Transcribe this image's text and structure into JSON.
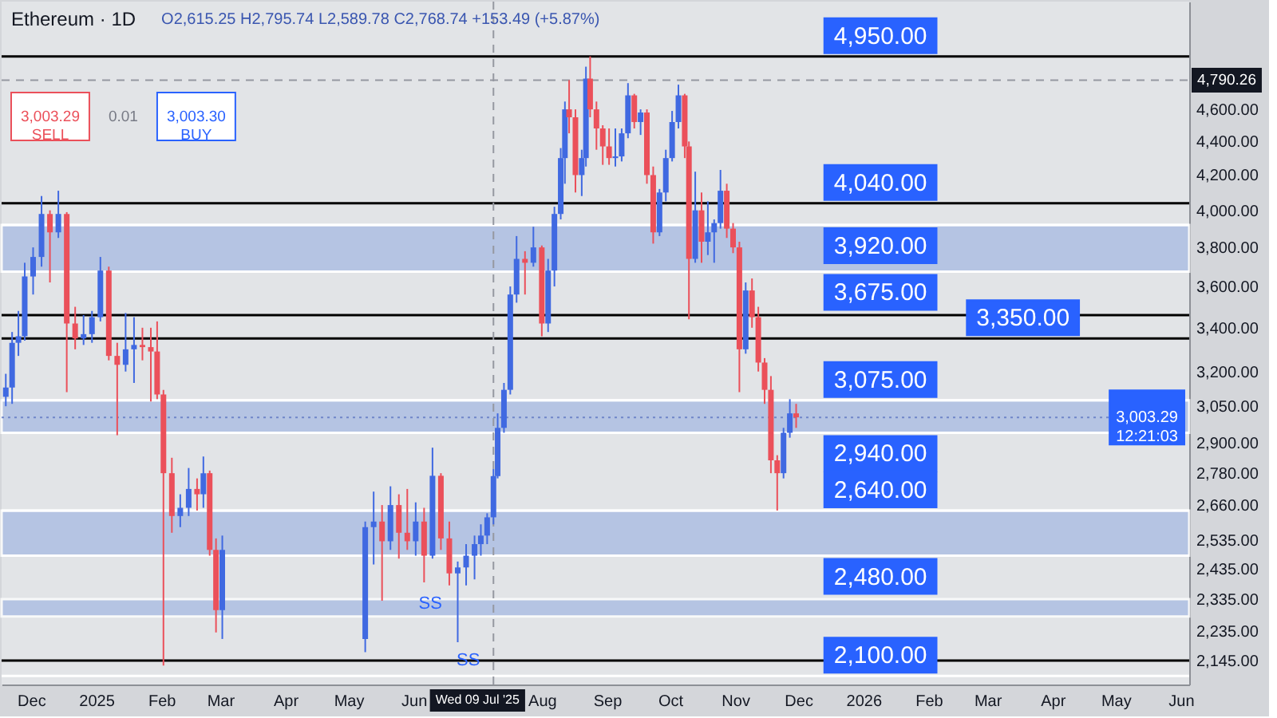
{
  "chart_data": {
    "type": "candlestick",
    "title": "Ethereum · 1D",
    "subtitle": "O2,615.25 H2,795.74 L2,589.78 C2,768.74 +153.49 (+5.87%)",
    "x": [
      "2024-11-19",
      "2024-11-22",
      "2024-11-25",
      "2024-11-28",
      "2024-12-02",
      "2024-12-06",
      "2024-12-10",
      "2024-12-14",
      "2024-12-18",
      "2024-12-22",
      "2024-12-26",
      "2024-12-30",
      "2025-01-03",
      "2025-01-07",
      "2025-01-11",
      "2025-01-15",
      "2025-01-19",
      "2025-01-23",
      "2025-01-27",
      "2025-01-30",
      "2025-02-02",
      "2025-02-06",
      "2025-02-10",
      "2025-02-14",
      "2025-02-18",
      "2025-02-21",
      "2025-02-24",
      "2025-02-27",
      "2025-03-02",
      "2025-05-09",
      "2025-05-13",
      "2025-05-17",
      "2025-05-21",
      "2025-05-25",
      "2025-05-29",
      "2025-06-02",
      "2025-06-06",
      "2025-06-10",
      "2025-06-14",
      "2025-06-18",
      "2025-06-22",
      "2025-06-26",
      "2025-06-30",
      "2025-07-03",
      "2025-07-06",
      "2025-07-09",
      "2025-07-11",
      "2025-07-14",
      "2025-07-17",
      "2025-07-20",
      "2025-07-24",
      "2025-07-28",
      "2025-08-01",
      "2025-08-04",
      "2025-08-07",
      "2025-08-10",
      "2025-08-12",
      "2025-08-14",
      "2025-08-17",
      "2025-08-20",
      "2025-08-22",
      "2025-08-24",
      "2025-08-27",
      "2025-08-30",
      "2025-09-02",
      "2025-09-05",
      "2025-09-08",
      "2025-09-11",
      "2025-09-14",
      "2025-09-17",
      "2025-09-20",
      "2025-09-23",
      "2025-09-26",
      "2025-09-29",
      "2025-10-02",
      "2025-10-05",
      "2025-10-08",
      "2025-10-10",
      "2025-10-13",
      "2025-10-16",
      "2025-10-19",
      "2025-10-22",
      "2025-10-25",
      "2025-10-28",
      "2025-10-31",
      "2025-11-03",
      "2025-11-06",
      "2025-11-09",
      "2025-11-12",
      "2025-11-15",
      "2025-11-18",
      "2025-11-21",
      "2025-11-24",
      "2025-11-27",
      "2025-11-30"
    ],
    "ohlc": [
      [
        3090,
        3190,
        3050,
        3130
      ],
      [
        3130,
        3380,
        3060,
        3330
      ],
      [
        3330,
        3480,
        3270,
        3360
      ],
      [
        3360,
        3720,
        3340,
        3650
      ],
      [
        3650,
        3800,
        3560,
        3750
      ],
      [
        3750,
        4080,
        3700,
        3980
      ],
      [
        3980,
        4000,
        3620,
        3880
      ],
      [
        3880,
        4110,
        3850,
        3980
      ],
      [
        3980,
        3990,
        3110,
        3420
      ],
      [
        3420,
        3500,
        3300,
        3350
      ],
      [
        3350,
        3460,
        3320,
        3370
      ],
      [
        3370,
        3480,
        3330,
        3450
      ],
      [
        3450,
        3750,
        3430,
        3680
      ],
      [
        3680,
        3700,
        3250,
        3270
      ],
      [
        3270,
        3330,
        2930,
        3230
      ],
      [
        3230,
        3470,
        3200,
        3300
      ],
      [
        3300,
        3450,
        3150,
        3320
      ],
      [
        3320,
        3400,
        3250,
        3310
      ],
      [
        3310,
        3400,
        3070,
        3290
      ],
      [
        3290,
        3430,
        3080,
        3100
      ],
      [
        3100,
        3120,
        2130,
        2780
      ],
      [
        2780,
        2840,
        2560,
        2620
      ],
      [
        2620,
        2700,
        2580,
        2650
      ],
      [
        2650,
        2800,
        2620,
        2720
      ],
      [
        2720,
        2760,
        2640,
        2700
      ],
      [
        2700,
        2845,
        2650,
        2780
      ],
      [
        2780,
        2790,
        2480,
        2500
      ],
      [
        2500,
        2540,
        2230,
        2300
      ],
      [
        2300,
        2550,
        2210,
        2500
      ],
      [
        2210,
        2600,
        2170,
        2580
      ],
      [
        2580,
        2710,
        2450,
        2600
      ],
      [
        2600,
        2660,
        2330,
        2530
      ],
      [
        2530,
        2730,
        2500,
        2660
      ],
      [
        2660,
        2700,
        2470,
        2560
      ],
      [
        2560,
        2720,
        2500,
        2530
      ],
      [
        2530,
        2670,
        2480,
        2600
      ],
      [
        2600,
        2650,
        2390,
        2480
      ],
      [
        2480,
        2880,
        2470,
        2770
      ],
      [
        2770,
        2780,
        2500,
        2540
      ],
      [
        2540,
        2600,
        2380,
        2420
      ],
      [
        2420,
        2460,
        2200,
        2440
      ],
      [
        2440,
        2520,
        2380,
        2480
      ],
      [
        2480,
        2550,
        2400,
        2520
      ],
      [
        2520,
        2590,
        2480,
        2550
      ],
      [
        2550,
        2630,
        2520,
        2615.25
      ],
      [
        2615.25,
        2795.74,
        2589.78,
        2768.74
      ],
      [
        2768.74,
        3020,
        2760,
        2960
      ],
      [
        2960,
        3150,
        2940,
        3120
      ],
      [
        3120,
        3600,
        3100,
        3560
      ],
      [
        3560,
        3860,
        3520,
        3740
      ],
      [
        3740,
        3780,
        3560,
        3720
      ],
      [
        3720,
        3910,
        3700,
        3800
      ],
      [
        3800,
        3810,
        3360,
        3420
      ],
      [
        3420,
        3740,
        3380,
        3680
      ],
      [
        3680,
        4020,
        3600,
        3980
      ],
      [
        3980,
        4360,
        3950,
        4300
      ],
      [
        4300,
        4650,
        4150,
        4600
      ],
      [
        4600,
        4790,
        4450,
        4550
      ],
      [
        4550,
        4600,
        4100,
        4200
      ],
      [
        4200,
        4350,
        4080,
        4300
      ],
      [
        4300,
        4880,
        4250,
        4800
      ],
      [
        4800,
        4950,
        4550,
        4600
      ],
      [
        4600,
        4650,
        4350,
        4480
      ],
      [
        4480,
        4500,
        4260,
        4370
      ],
      [
        4370,
        4480,
        4260,
        4300
      ],
      [
        4300,
        4480,
        4250,
        4310
      ],
      [
        4310,
        4480,
        4280,
        4450
      ],
      [
        4450,
        4770,
        4420,
        4690
      ],
      [
        4690,
        4700,
        4480,
        4520
      ],
      [
        4520,
        4600,
        4440,
        4580
      ],
      [
        4580,
        4600,
        4150,
        4200
      ],
      [
        4200,
        4250,
        3820,
        3880
      ],
      [
        3880,
        4120,
        3860,
        4100
      ],
      [
        4100,
        4350,
        4050,
        4300
      ],
      [
        4300,
        4590,
        4280,
        4520
      ],
      [
        4520,
        4760,
        4480,
        4690
      ],
      [
        4690,
        4700,
        4300,
        4370
      ],
      [
        4370,
        4400,
        3440,
        3740
      ],
      [
        3740,
        4220,
        3720,
        4000
      ],
      [
        4000,
        4100,
        3720,
        3830
      ],
      [
        3830,
        4050,
        3760,
        3880
      ],
      [
        3880,
        3950,
        3720,
        3930
      ],
      [
        3930,
        4230,
        3900,
        4110
      ],
      [
        4110,
        4150,
        3850,
        3900
      ],
      [
        3900,
        3930,
        3770,
        3800
      ],
      [
        3800,
        3830,
        3110,
        3300
      ],
      [
        3300,
        3620,
        3280,
        3580
      ],
      [
        3580,
        3640,
        3400,
        3450
      ],
      [
        3450,
        3500,
        3200,
        3240
      ],
      [
        3240,
        3260,
        3060,
        3120
      ],
      [
        3120,
        3180,
        2780,
        2830
      ],
      [
        2830,
        2850,
        2640,
        2780
      ],
      [
        2780,
        2960,
        2760,
        2940
      ],
      [
        2940,
        3080,
        2920,
        3020
      ],
      [
        3020,
        3060,
        2960,
        3003.29
      ]
    ],
    "colors": [
      "#4069e1",
      "#4069e1",
      "#4069e1",
      "#4069e1",
      "#4069e1",
      "#4069e1",
      "#eb505a",
      "#4069e1",
      "#eb505a",
      "#eb505a",
      "#4069e1",
      "#4069e1",
      "#4069e1",
      "#eb505a",
      "#eb505a",
      "#4069e1",
      "#4069e1",
      "#eb505a",
      "#eb505a",
      "#eb505a",
      "#eb505a",
      "#eb505a",
      "#4069e1",
      "#4069e1",
      "#eb505a",
      "#4069e1",
      "#eb505a",
      "#eb505a",
      "#4069e1",
      "#4069e1",
      "#4069e1",
      "#eb505a",
      "#4069e1",
      "#eb505a",
      "#eb505a",
      "#4069e1",
      "#eb505a",
      "#4069e1",
      "#eb505a",
      "#eb505a",
      "#4069e1",
      "#4069e1",
      "#4069e1",
      "#4069e1",
      "#4069e1",
      "#4069e1",
      "#4069e1",
      "#4069e1",
      "#4069e1",
      "#4069e1",
      "#eb505a",
      "#4069e1",
      "#eb505a",
      "#4069e1",
      "#4069e1",
      "#4069e1",
      "#4069e1",
      "#eb505a",
      "#eb505a",
      "#4069e1",
      "#4069e1",
      "#eb505a",
      "#eb505a",
      "#eb505a",
      "#eb505a",
      "#4069e1",
      "#4069e1",
      "#4069e1",
      "#eb505a",
      "#4069e1",
      "#eb505a",
      "#eb505a",
      "#4069e1",
      "#4069e1",
      "#4069e1",
      "#4069e1",
      "#eb505a",
      "#eb505a",
      "#4069e1",
      "#eb505a",
      "#4069e1",
      "#4069e1",
      "#4069e1",
      "#eb505a",
      "#eb505a",
      "#eb505a",
      "#4069e1",
      "#eb505a",
      "#eb505a",
      "#eb505a",
      "#eb505a",
      "#eb505a",
      "#4069e1",
      "#4069e1",
      "#eb505a"
    ],
    "xlim": [
      "2024-11-17",
      "2026-06-05"
    ],
    "ylim": [
      2075,
      5340
    ],
    "log": true,
    "xticks": [
      {
        "value": "2024-12-01",
        "label": "Dec"
      },
      {
        "value": "2025-01-01",
        "label": "2025"
      },
      {
        "value": "2025-02-01",
        "label": "Feb"
      },
      {
        "value": "2025-03-01",
        "label": "Mar"
      },
      {
        "value": "2025-04-01",
        "label": "Apr"
      },
      {
        "value": "2025-05-01",
        "label": "May"
      },
      {
        "value": "2025-06-01",
        "label": "Jun"
      },
      {
        "value": "2025-08-01",
        "label": "Aug"
      },
      {
        "value": "2025-09-01",
        "label": "Sep"
      },
      {
        "value": "2025-10-01",
        "label": "Oct"
      },
      {
        "value": "2025-11-01",
        "label": "Nov"
      },
      {
        "value": "2025-12-01",
        "label": "Dec"
      },
      {
        "value": "2026-01-01",
        "label": "2026"
      },
      {
        "value": "2026-02-01",
        "label": "Feb"
      },
      {
        "value": "2026-03-01",
        "label": "Mar"
      },
      {
        "value": "2026-04-01",
        "label": "Apr"
      },
      {
        "value": "2026-05-01",
        "label": "May"
      },
      {
        "value": "2026-06-01",
        "label": "Jun"
      }
    ],
    "yticks": [
      {
        "value": 4600,
        "label": "4,600.00"
      },
      {
        "value": 4400,
        "label": "4,400.00"
      },
      {
        "value": 4200,
        "label": "4,200.00"
      },
      {
        "value": 4000,
        "label": "4,000.00"
      },
      {
        "value": 3800,
        "label": "3,800.00"
      },
      {
        "value": 3600,
        "label": "3,600.00"
      },
      {
        "value": 3400,
        "label": "3,400.00"
      },
      {
        "value": 3200,
        "label": "3,200.00"
      },
      {
        "value": 3050,
        "label": "3,050.00"
      },
      {
        "value": 2900,
        "label": "2,900.00"
      },
      {
        "value": 2780,
        "label": "2,780.00"
      },
      {
        "value": 2660,
        "label": "2,660.00"
      },
      {
        "value": 2535,
        "label": "2,535.00"
      },
      {
        "value": 2435,
        "label": "2,435.00"
      },
      {
        "value": 2335,
        "label": "2,335.00"
      },
      {
        "value": 2235,
        "label": "2,235.00"
      },
      {
        "value": 2145,
        "label": "2,145.00"
      }
    ],
    "bands": [
      {
        "axis": "y",
        "from": 3675,
        "to": 3920,
        "color": "#a9bce2"
      },
      {
        "axis": "y",
        "from": 2940,
        "to": 3075,
        "color": "#a9bce2"
      },
      {
        "axis": "y",
        "from": 2480,
        "to": 2640,
        "color": "#a9bce2"
      },
      {
        "axis": "y",
        "from": 2280,
        "to": 2335,
        "color": "#a9bce2"
      }
    ],
    "ref_lines": [
      {
        "axis": "y",
        "value": 4950,
        "label": "4,950.00",
        "color": "#000000"
      },
      {
        "axis": "y",
        "value": 4790.26,
        "label": "4,790.26",
        "color": "#9598a1",
        "line_style": "dashed"
      },
      {
        "axis": "y",
        "value": 4040,
        "label": "4,040.00",
        "color": "#000000"
      },
      {
        "axis": "y",
        "value": 3920,
        "label": "3,920.00",
        "color": "#ffffff"
      },
      {
        "axis": "y",
        "value": 3675,
        "label": "3,675.00",
        "color": "#ffffff"
      },
      {
        "axis": "y",
        "value": 3460,
        "color": "#000000"
      },
      {
        "axis": "y",
        "value": 3350,
        "label": "3,350.00",
        "color": "#000000"
      },
      {
        "axis": "y",
        "value": 3075,
        "label": "3,075.00",
        "color": "#ffffff"
      },
      {
        "axis": "y",
        "value": 3003.29,
        "label": "3,003.29\n12:21:03",
        "color": "#6f86c9",
        "line_style": "dotted"
      },
      {
        "axis": "y",
        "value": 2940,
        "label": "2,940.00",
        "color": "#ffffff"
      },
      {
        "axis": "y",
        "value": 2640,
        "label": "2,640.00",
        "color": "#ffffff"
      },
      {
        "axis": "y",
        "value": 2480,
        "label": "2,480.00",
        "color": "#ffffff"
      },
      {
        "axis": "y",
        "value": 2145,
        "color": "#000000"
      },
      {
        "axis": "y",
        "value": 2100,
        "label": "2,100.00",
        "color": "#ffffff"
      },
      {
        "axis": "x",
        "value": "2025-07-09",
        "label": "Wed 09 Jul '25",
        "color": "#9598a1",
        "line_style": "dashed"
      }
    ],
    "annotations": [
      "3,003.29\nSELL",
      "0.01",
      "3,003.30\nBUY",
      {
        "text": "SS",
        "x": "2025-06-09",
        "y": 2321
      },
      {
        "text": "SS",
        "x": "2025-06-27",
        "y": 2145
      }
    ]
  }
}
